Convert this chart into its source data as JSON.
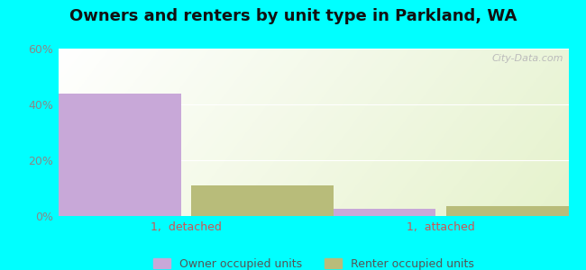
{
  "title": "Owners and renters by unit type in Parkland, WA",
  "categories": [
    "1,  detached",
    "1,  attached"
  ],
  "owner_values": [
    44.0,
    2.5
  ],
  "renter_values": [
    11.0,
    3.5
  ],
  "owner_color": "#c8a8d8",
  "renter_color": "#b8bc7a",
  "ylim": [
    0,
    60
  ],
  "yticks": [
    0,
    20,
    40,
    60
  ],
  "ytick_labels": [
    "0%",
    "20%",
    "40%",
    "60%"
  ],
  "bar_width": 0.28,
  "outer_background": "#00ffff",
  "legend_owner": "Owner occupied units",
  "legend_renter": "Renter occupied units",
  "watermark": "City-Data.com",
  "title_fontsize": 13,
  "axis_label_fontsize": 9,
  "legend_fontsize": 9,
  "x_positions": [
    0.25,
    0.75
  ],
  "xlim": [
    0.0,
    1.0
  ]
}
